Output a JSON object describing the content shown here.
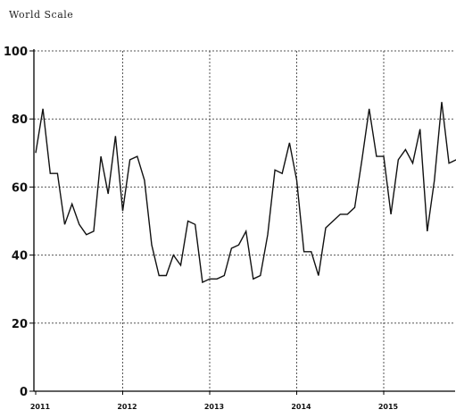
{
  "chart_data": {
    "type": "line",
    "title": "World Scale",
    "xlabel": "",
    "ylabel": "",
    "xlim": [
      2011,
      2015.85
    ],
    "ylim": [
      0,
      100
    ],
    "x_ticks": [
      {
        "value": 2011,
        "label": "2011"
      },
      {
        "value": 2012,
        "label": "2012"
      },
      {
        "value": 2013,
        "label": "2013"
      },
      {
        "value": 2014,
        "label": "2014"
      },
      {
        "value": 2015,
        "label": "2015"
      }
    ],
    "y_ticks": [
      {
        "value": 0,
        "label": "0"
      },
      {
        "value": 20,
        "label": "20"
      },
      {
        "value": 40,
        "label": "40"
      },
      {
        "value": 60,
        "label": "60"
      },
      {
        "value": 80,
        "label": "80"
      },
      {
        "value": 100,
        "label": "100"
      }
    ],
    "grid": true,
    "series": [
      {
        "x": [
          2011.0,
          2011.083,
          2011.167,
          2011.25,
          2011.333,
          2011.417,
          2011.5,
          2011.583,
          2011.667,
          2011.75,
          2011.833,
          2011.917,
          2012.0,
          2012.083,
          2012.167,
          2012.25,
          2012.333,
          2012.417,
          2012.5,
          2012.583,
          2012.667,
          2012.75,
          2012.833,
          2012.917,
          2013.0,
          2013.083,
          2013.167,
          2013.25,
          2013.333,
          2013.417,
          2013.5,
          2013.583,
          2013.667,
          2013.75,
          2013.833,
          2013.917,
          2014.0,
          2014.083,
          2014.167,
          2014.25,
          2014.333,
          2014.417,
          2014.5,
          2014.583,
          2014.667,
          2014.75,
          2014.833,
          2014.917,
          2015.0,
          2015.083,
          2015.167,
          2015.25,
          2015.333,
          2015.417,
          2015.5,
          2015.583,
          2015.667,
          2015.75,
          2015.833
        ],
        "values": [
          70,
          83,
          64,
          64,
          49,
          55,
          49,
          46,
          47,
          69,
          58,
          75,
          53,
          68,
          69,
          62,
          43,
          34,
          34,
          40,
          37,
          50,
          49,
          32,
          33,
          33,
          34,
          42,
          43,
          47,
          33,
          34,
          46,
          65,
          64,
          73,
          62,
          41,
          41,
          34,
          48,
          50,
          52,
          52,
          54,
          68,
          83,
          69,
          69,
          52,
          68,
          71,
          67,
          77,
          47,
          62,
          85,
          67,
          68
        ]
      }
    ],
    "colors": {
      "line": "#111111",
      "grid": "#555555",
      "axis": "#000000"
    }
  }
}
